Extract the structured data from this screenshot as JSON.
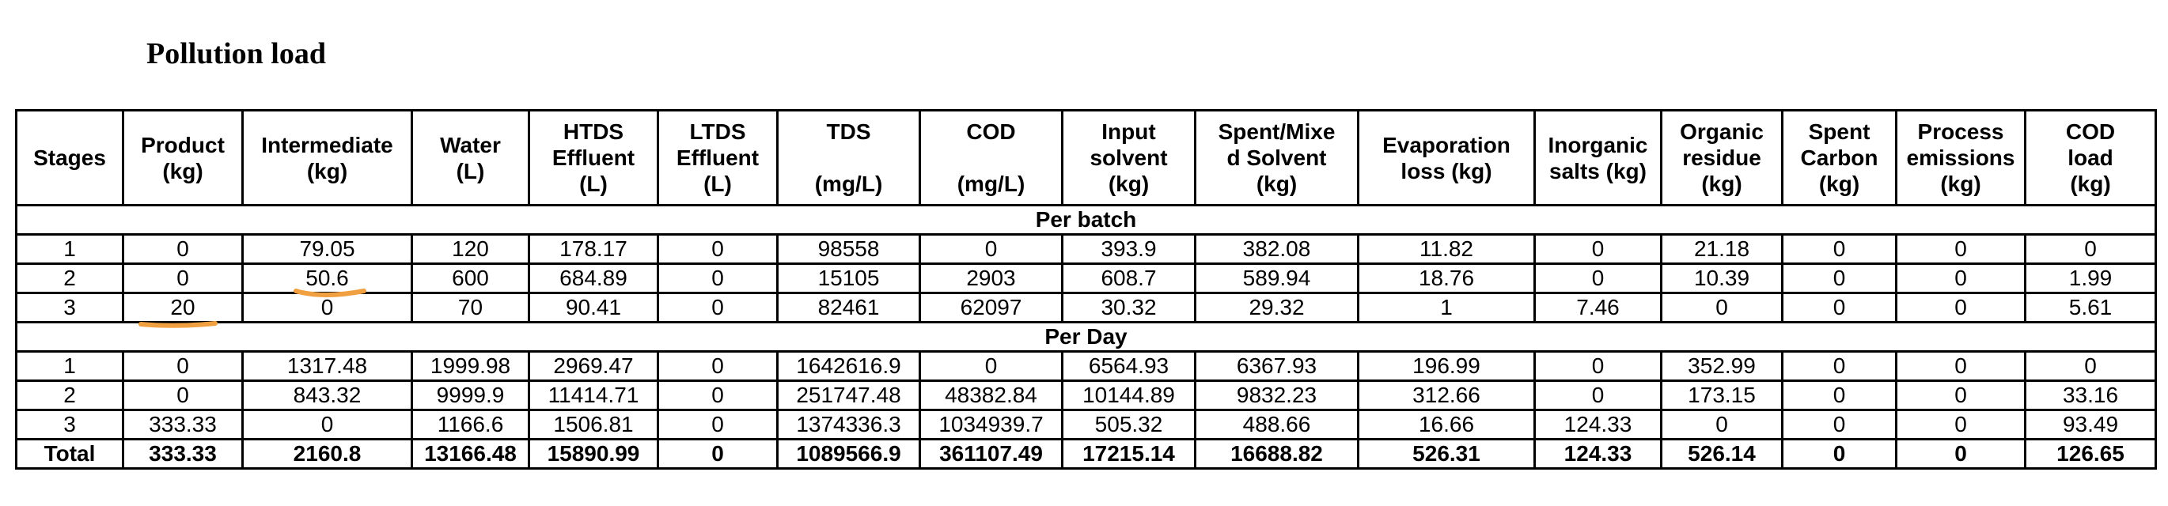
{
  "title": "Pollution load",
  "columns": [
    "Stages",
    "Product\n(kg)",
    "Intermediate\n(kg)",
    "Water\n(L)",
    "HTDS\nEffluent\n(L)",
    "LTDS\nEffluent\n(L)",
    "TDS\n\n(mg/L)",
    "COD\n\n(mg/L)",
    "Input\nsolvent\n(kg)",
    "Spent/Mixe\nd Solvent\n(kg)",
    "Evaporation\nloss (kg)",
    "Inorganic\nsalts (kg)",
    "Organic\nresidue\n(kg)",
    "Spent\nCarbon\n(kg)",
    "Process\nemissions\n(kg)",
    "COD\nload\n(kg)"
  ],
  "sections": [
    {
      "label": "Per batch",
      "rows": [
        [
          "1",
          "0",
          "79.05",
          "120",
          "178.17",
          "0",
          "98558",
          "0",
          "393.9",
          "382.08",
          "11.82",
          "0",
          "21.18",
          "0",
          "0",
          "0"
        ],
        [
          "2",
          "0",
          "50.6",
          "600",
          "684.89",
          "0",
          "15105",
          "2903",
          "608.7",
          "589.94",
          "18.76",
          "0",
          "10.39",
          "0",
          "0",
          "1.99"
        ],
        [
          "3",
          "20",
          "0",
          "70",
          "90.41",
          "0",
          "82461",
          "62097",
          "30.32",
          "29.32",
          "1",
          "7.46",
          "0",
          "0",
          "0",
          "5.61"
        ]
      ]
    },
    {
      "label": "Per Day",
      "rows": [
        [
          "1",
          "0",
          "1317.48",
          "1999.98",
          "2969.47",
          "0",
          "1642616.9",
          "0",
          "6564.93",
          "6367.93",
          "196.99",
          "0",
          "352.99",
          "0",
          "0",
          "0"
        ],
        [
          "2",
          "0",
          "843.32",
          "9999.9",
          "11414.71",
          "0",
          "251747.48",
          "48382.84",
          "10144.89",
          "9832.23",
          "312.66",
          "0",
          "173.15",
          "0",
          "0",
          "33.16"
        ],
        [
          "3",
          "333.33",
          "0",
          "1166.6",
          "1506.81",
          "0",
          "1374336.3",
          "1034939.7",
          "505.32",
          "488.66",
          "16.66",
          "124.33",
          "0",
          "0",
          "0",
          "93.49"
        ]
      ]
    }
  ],
  "total": [
    "Total",
    "333.33",
    "2160.8",
    "13166.48",
    "15890.99",
    "0",
    "1089566.9",
    "361107.49",
    "17215.14",
    "16688.82",
    "526.31",
    "124.33",
    "526.14",
    "0",
    "0",
    "126.65"
  ],
  "highlight_color": "#f0a040"
}
